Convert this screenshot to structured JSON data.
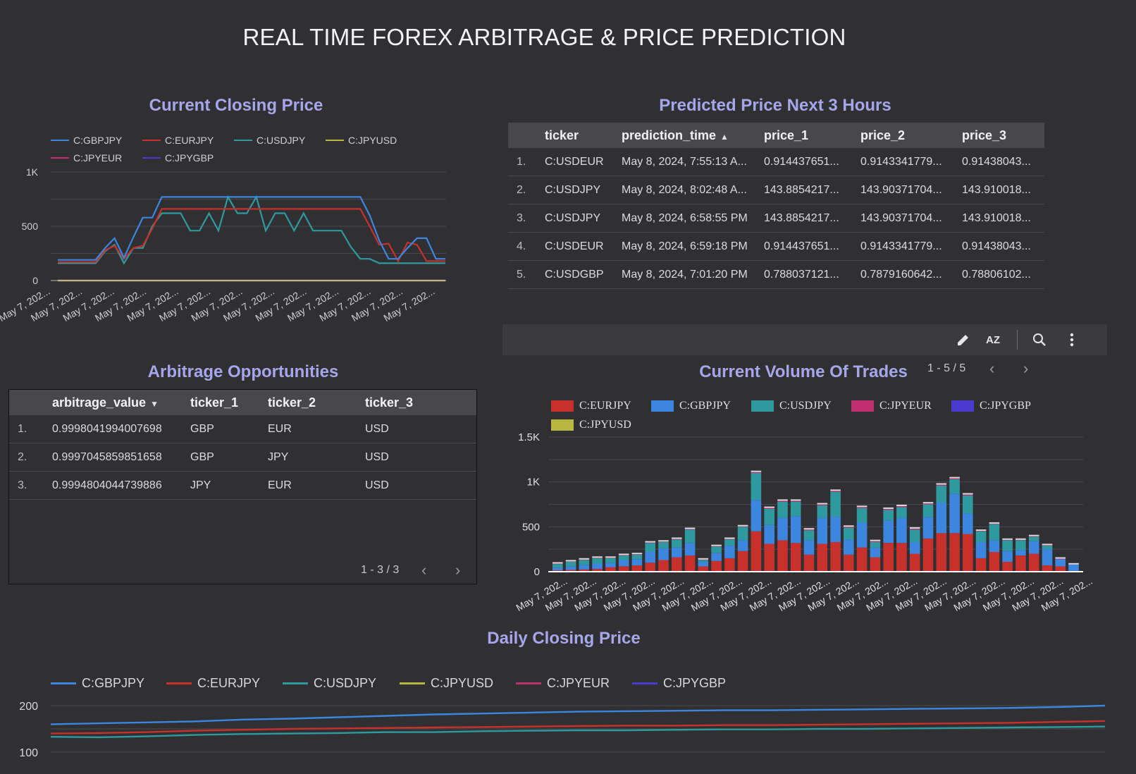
{
  "page_title": "REAL TIME FOREX ARBITRAGE & PRICE PREDICTION",
  "colors": {
    "background": "#303033",
    "title_accent": "#a7a6ea",
    "GBPJPY": "#3c86e0",
    "EURJPY": "#c8302c",
    "USDJPY": "#2e9aa0",
    "JPYUSD": "#b8b840",
    "JPYEUR": "#c03070",
    "JPYGBP": "#4a3ad0"
  },
  "closing_price": {
    "title": "Current Closing Price",
    "legend": [
      "C:GBPJPY",
      "C:EURJPY",
      "C:USDJPY",
      "C:JPYUSD",
      "C:JPYEUR",
      "C:JPYGBP"
    ],
    "y_ticks": [
      "1K",
      "500",
      "0"
    ],
    "x_tick_label": "May 7, 202..."
  },
  "predicted": {
    "title": "Predicted Price Next 3 Hours",
    "columns": [
      "ticker",
      "prediction_time",
      "price_1",
      "price_2",
      "price_3"
    ],
    "rows": [
      {
        "idx": "1.",
        "ticker": "C:USDEUR",
        "time": "May 8, 2024, 7:55:13 A...",
        "p1": "0.914437651...",
        "p2": "0.9143341779...",
        "p3": "0.91438043..."
      },
      {
        "idx": "2.",
        "ticker": "C:USDJPY",
        "time": "May 8, 2024, 8:02:48 A...",
        "p1": "143.8854217...",
        "p2": "143.90371704...",
        "p3": "143.910018..."
      },
      {
        "idx": "3.",
        "ticker": "C:USDJPY",
        "time": "May 8, 2024, 6:58:55 PM",
        "p1": "143.8854217...",
        "p2": "143.90371704...",
        "p3": "143.910018..."
      },
      {
        "idx": "4.",
        "ticker": "C:USDEUR",
        "time": "May 8, 2024, 6:59:18 PM",
        "p1": "0.914437651...",
        "p2": "0.9143341779...",
        "p3": "0.91438043..."
      },
      {
        "idx": "5.",
        "ticker": "C:USDGBP",
        "time": "May 8, 2024, 7:01:20 PM",
        "p1": "0.788037121...",
        "p2": "0.7879160642...",
        "p3": "0.78806102..."
      }
    ]
  },
  "arbitrage": {
    "title": "Arbitrage Opportunities",
    "columns": [
      "arbitrage_value",
      "ticker_1",
      "ticker_2",
      "ticker_3"
    ],
    "rows": [
      {
        "idx": "1.",
        "value": "0.9998041994007698",
        "t1": "GBP",
        "t2": "EUR",
        "t3": "USD"
      },
      {
        "idx": "2.",
        "value": "0.9997045859851658",
        "t1": "GBP",
        "t2": "JPY",
        "t3": "USD"
      },
      {
        "idx": "3.",
        "value": "0.9994804044739886",
        "t1": "JPY",
        "t2": "EUR",
        "t3": "USD"
      }
    ],
    "pager": "1 - 3 / 3"
  },
  "volume": {
    "title": "Current Volume Of Trades",
    "pager": "1 - 5 / 5",
    "legend": [
      "C:EURJPY",
      "C:GBPJPY",
      "C:USDJPY",
      "C:JPYEUR",
      "C:JPYGBP",
      "C:JPYUSD"
    ],
    "y_ticks": [
      "1.5K",
      "1K",
      "500",
      "0"
    ],
    "x_tick_label": "May 7, 202..."
  },
  "daily": {
    "title": "Daily Closing Price",
    "legend": [
      "C:GBPJPY",
      "C:EURJPY",
      "C:USDJPY",
      "C:JPYUSD",
      "C:JPYEUR",
      "C:JPYGBP"
    ],
    "y_ticks": [
      "200",
      "100"
    ]
  },
  "chart_data": [
    {
      "type": "line",
      "title": "Current Closing Price",
      "ylim": [
        0,
        1000
      ],
      "series": [
        {
          "name": "C:GBPJPY",
          "values": [
            190,
            190,
            190,
            190,
            190,
            300,
            390,
            210,
            400,
            580,
            580,
            770,
            770,
            770,
            770,
            770,
            770,
            770,
            770,
            770,
            770,
            770,
            770,
            770,
            770,
            770,
            770,
            770,
            770,
            770,
            770,
            770,
            770,
            600,
            370,
            200,
            200,
            300,
            390,
            390,
            200,
            200
          ]
        },
        {
          "name": "C:EURJPY",
          "values": [
            170,
            170,
            170,
            170,
            170,
            280,
            320,
            200,
            300,
            320,
            480,
            660,
            660,
            660,
            660,
            660,
            660,
            660,
            660,
            660,
            660,
            660,
            660,
            660,
            660,
            660,
            660,
            660,
            660,
            660,
            660,
            660,
            660,
            500,
            330,
            340,
            180,
            350,
            330,
            180,
            180,
            180
          ]
        },
        {
          "name": "C:USDJPY",
          "values": [
            160,
            160,
            160,
            160,
            160,
            270,
            330,
            160,
            300,
            300,
            500,
            620,
            620,
            620,
            460,
            460,
            620,
            460,
            770,
            620,
            620,
            770,
            460,
            620,
            620,
            460,
            620,
            460,
            460,
            460,
            460,
            310,
            200,
            200,
            160,
            160,
            160,
            160,
            160,
            160,
            160,
            160
          ]
        },
        {
          "name": "C:JPYUSD",
          "values": [
            0,
            0,
            0,
            0,
            0,
            0,
            0,
            0,
            0,
            0,
            0,
            0,
            0,
            0,
            0,
            0,
            0,
            0,
            0,
            0,
            0,
            0,
            0,
            0,
            0,
            0,
            0,
            0,
            0,
            0,
            0,
            0,
            0,
            0,
            0,
            0,
            0,
            0,
            0,
            0,
            0,
            0
          ]
        },
        {
          "name": "C:JPYEUR",
          "values": [
            0,
            0,
            0,
            0,
            0,
            0,
            0,
            0,
            0,
            0,
            0,
            0,
            0,
            0,
            0,
            0,
            0,
            0,
            0,
            0,
            0,
            0,
            0,
            0,
            0,
            0,
            0,
            0,
            0,
            0,
            0,
            0,
            0,
            0,
            0,
            0,
            0,
            0,
            0,
            0,
            0,
            0
          ]
        },
        {
          "name": "C:JPYGBP",
          "values": [
            0,
            0,
            0,
            0,
            0,
            0,
            0,
            0,
            0,
            0,
            0,
            0,
            0,
            0,
            0,
            0,
            0,
            0,
            0,
            0,
            0,
            0,
            0,
            0,
            0,
            0,
            0,
            0,
            0,
            0,
            0,
            0,
            0,
            0,
            0,
            0,
            0,
            0,
            0,
            0,
            0,
            0
          ]
        }
      ]
    },
    {
      "type": "bar",
      "title": "Current Volume Of Trades",
      "stacked": true,
      "ylim": [
        0,
        1500
      ],
      "series": [
        {
          "name": "C:EURJPY",
          "values": [
            15,
            20,
            25,
            30,
            50,
            60,
            70,
            100,
            130,
            160,
            180,
            60,
            120,
            150,
            230,
            450,
            310,
            350,
            320,
            190,
            310,
            330,
            190,
            270,
            160,
            320,
            320,
            200,
            370,
            430,
            430,
            420,
            150,
            220,
            110,
            180,
            200,
            70,
            60,
            0
          ]
        },
        {
          "name": "C:GBPJPY",
          "values": [
            30,
            40,
            50,
            60,
            50,
            70,
            70,
            120,
            130,
            110,
            140,
            50,
            90,
            140,
            120,
            350,
            210,
            250,
            300,
            160,
            290,
            280,
            170,
            280,
            110,
            250,
            280,
            130,
            240,
            340,
            440,
            230,
            180,
            130,
            120,
            60,
            140,
            180,
            80,
            80
          ]
        },
        {
          "name": "C:USDJPY",
          "values": [
            40,
            50,
            55,
            60,
            50,
            50,
            50,
            100,
            70,
            90,
            150,
            20,
            70,
            70,
            150,
            300,
            180,
            180,
            160,
            110,
            140,
            280,
            130,
            160,
            60,
            120,
            120,
            140,
            140,
            190,
            160,
            200,
            120,
            180,
            120,
            110,
            50,
            40,
            0,
            0
          ]
        },
        {
          "name": "C:JPYEUR",
          "values": [
            5,
            5,
            5,
            5,
            5,
            5,
            5,
            5,
            5,
            5,
            5,
            5,
            5,
            5,
            5,
            10,
            10,
            10,
            10,
            10,
            10,
            10,
            10,
            10,
            10,
            10,
            10,
            10,
            10,
            10,
            10,
            10,
            5,
            5,
            5,
            5,
            5,
            5,
            5,
            0
          ]
        },
        {
          "name": "C:JPYGBP",
          "values": [
            0,
            0,
            0,
            0,
            0,
            0,
            0,
            0,
            0,
            0,
            0,
            0,
            0,
            0,
            0,
            0,
            0,
            0,
            0,
            0,
            0,
            0,
            0,
            0,
            0,
            0,
            0,
            0,
            0,
            0,
            0,
            0,
            0,
            0,
            0,
            0,
            0,
            0,
            0,
            0
          ]
        },
        {
          "name": "C:JPYUSD",
          "values": [
            0,
            0,
            0,
            0,
            0,
            0,
            0,
            0,
            0,
            0,
            0,
            0,
            0,
            0,
            0,
            0,
            0,
            0,
            0,
            0,
            0,
            0,
            0,
            0,
            0,
            0,
            0,
            0,
            0,
            0,
            0,
            0,
            0,
            0,
            0,
            0,
            0,
            0,
            0,
            0
          ]
        }
      ]
    },
    {
      "type": "line",
      "title": "Daily Closing Price",
      "ylim": [
        75,
        205
      ],
      "series": [
        {
          "name": "C:GBPJPY",
          "values": [
            160,
            162,
            164,
            166,
            170,
            172,
            175,
            178,
            181,
            183,
            185,
            187,
            188,
            189,
            190,
            190,
            191,
            192,
            193,
            194,
            195,
            197,
            200
          ]
        },
        {
          "name": "C:EURJPY",
          "values": [
            140,
            141,
            143,
            146,
            148,
            150,
            151,
            152,
            153,
            154,
            155,
            156,
            157,
            157,
            158,
            158,
            159,
            160,
            161,
            162,
            163,
            165,
            167
          ]
        },
        {
          "name": "C:USDJPY",
          "values": [
            133,
            132,
            134,
            137,
            139,
            140,
            141,
            143,
            143,
            145,
            146,
            147,
            147,
            148,
            149,
            149,
            150,
            150,
            151,
            152,
            153,
            154,
            155
          ]
        },
        {
          "name": "C:JPYUSD",
          "values": [
            0,
            0,
            0,
            0,
            0,
            0,
            0,
            0,
            0,
            0,
            0,
            0,
            0,
            0,
            0,
            0,
            0,
            0,
            0,
            0,
            0,
            0,
            0
          ]
        },
        {
          "name": "C:JPYEUR",
          "values": [
            0,
            0,
            0,
            0,
            0,
            0,
            0,
            0,
            0,
            0,
            0,
            0,
            0,
            0,
            0,
            0,
            0,
            0,
            0,
            0,
            0,
            0,
            0
          ]
        },
        {
          "name": "C:JPYGBP",
          "values": [
            0,
            0,
            0,
            0,
            0,
            0,
            0,
            0,
            0,
            0,
            0,
            0,
            0,
            0,
            0,
            0,
            0,
            0,
            0,
            0,
            0,
            0,
            0
          ]
        }
      ]
    }
  ]
}
